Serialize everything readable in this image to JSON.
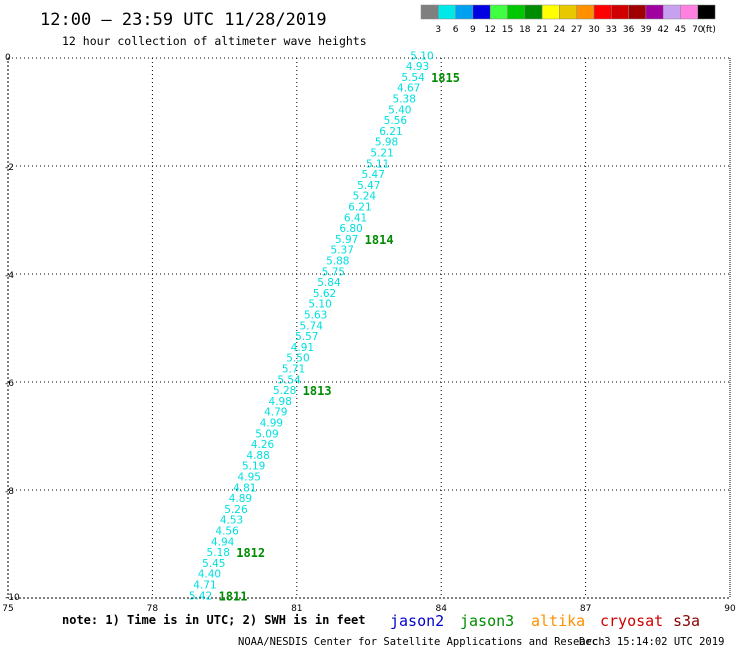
{
  "header": {
    "title": "12:00 – 23:59 UTC 11/28/2019",
    "subtitle": "12 hour collection of altimeter wave heights"
  },
  "colorbar": {
    "unit": "(ft)",
    "items": [
      {
        "label": "3",
        "color": "#7f7f7f"
      },
      {
        "label": "6",
        "color": "#00e8e8"
      },
      {
        "label": "9",
        "color": "#00a0f0"
      },
      {
        "label": "12",
        "color": "#0000e0"
      },
      {
        "label": "15",
        "color": "#40ff40"
      },
      {
        "label": "18",
        "color": "#00c800"
      },
      {
        "label": "21",
        "color": "#008c00"
      },
      {
        "label": "24",
        "color": "#ffff00"
      },
      {
        "label": "27",
        "color": "#e8c800"
      },
      {
        "label": "30",
        "color": "#ff9000"
      },
      {
        "label": "33",
        "color": "#ff0000"
      },
      {
        "label": "36",
        "color": "#d00000"
      },
      {
        "label": "39",
        "color": "#a00000"
      },
      {
        "label": "42",
        "color": "#a000a0"
      },
      {
        "label": "45",
        "color": "#c8a0f0"
      },
      {
        "label": "70",
        "color": "#ff80e0"
      },
      {
        "label": "",
        "color": "#000000"
      }
    ]
  },
  "footer": {
    "note": "note: 1) Time is in UTC; 2) SWH is in feet",
    "credit": "NOAA/NESDIS Center for Satellite Applications and Research",
    "timestamp": "Dec  3 15:14:02 UTC 2019",
    "satellites": [
      {
        "name": "jason2",
        "color": "#0000d0"
      },
      {
        "name": "jason3",
        "color": "#008c00"
      },
      {
        "name": "altika",
        "color": "#ff9000"
      },
      {
        "name": "cryosat",
        "color": "#d00000"
      },
      {
        "name": "s3a",
        "color": "#8b0000"
      }
    ]
  },
  "chart_data": {
    "type": "scatter",
    "xlim": [
      75,
      90
    ],
    "ylim": [
      -10,
      0
    ],
    "x_ticks": [
      "75",
      "78",
      "81",
      "84",
      "87",
      "90"
    ],
    "x_tick_values": [
      75,
      78,
      81,
      84,
      87,
      90
    ],
    "y_ticks": [
      "0",
      "-2",
      "-4",
      "-6",
      "-8",
      "-10"
    ],
    "y_tick_values": [
      0,
      -2,
      -4,
      -6,
      -8,
      -10
    ],
    "grid": true,
    "value_color": "#00e0e0",
    "time_color": "#008c00",
    "track_start": {
      "lon": 83.6,
      "lat": 0.05
    },
    "track_end": {
      "lon": 79.0,
      "lat": -9.95
    },
    "values": [
      "5.10",
      "4.93",
      "5.54",
      "4.67",
      "5.38",
      "5.40",
      "5.56",
      "6.21",
      "5.98",
      "5.21",
      "5.11",
      "5.47",
      "5.47",
      "5.24",
      "6.21",
      "6.41",
      "6.80",
      "5.97",
      "5.37",
      "5.88",
      "5.75",
      "5.84",
      "5.62",
      "5.10",
      "5.63",
      "5.74",
      "5.57",
      "4.91",
      "5.50",
      "5.71",
      "5.54",
      "5.28",
      "4.98",
      "4.79",
      "4.99",
      "5.09",
      "4.26",
      "4.88",
      "5.19",
      "4.95",
      "4.81",
      "4.89",
      "5.26",
      "4.53",
      "4.56",
      "4.94",
      "5.18",
      "5.45",
      "4.40",
      "4.71",
      "5.42"
    ],
    "time_labels": [
      {
        "label": "1815",
        "index": 2
      },
      {
        "label": "1814",
        "index": 17
      },
      {
        "label": "1813",
        "index": 31
      },
      {
        "label": "1812",
        "index": 46
      },
      {
        "label": "1811",
        "index": 50
      }
    ]
  }
}
